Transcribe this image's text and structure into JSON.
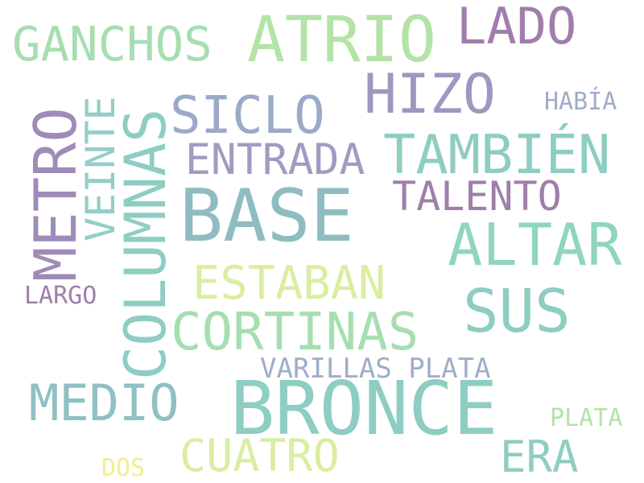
{
  "words": {
    "bronce": {
      "text": "BRONCE",
      "color": "#8ecdc2"
    },
    "base": {
      "text": "BASE",
      "color": "#8fbcc0"
    },
    "columnas": {
      "text": "COLUMNAS",
      "color": "#8ecdc2"
    },
    "atrio": {
      "text": "ATRIO",
      "color": "#b3e3a6"
    },
    "metro": {
      "text": "METRO",
      "color": "#a08bb8"
    },
    "cortinas": {
      "text": "CORTINAS",
      "color": "#a6deb0"
    },
    "sus": {
      "text": "SUS",
      "color": "#8ecdc2"
    },
    "altar": {
      "text": "ALTAR",
      "color": "#90d5bd"
    },
    "tambien": {
      "text": "TAMBIÉN",
      "color": "#8ecdc2"
    },
    "hizo": {
      "text": "HIZO",
      "color": "#9c98c0"
    },
    "lado": {
      "text": "LADO",
      "color": "#a07eab"
    },
    "ganchos": {
      "text": "GANCHOS",
      "color": "#a6deb0"
    },
    "siclo": {
      "text": "SICLO",
      "color": "#9aaac8"
    },
    "medio": {
      "text": "MEDIO",
      "color": "#8ec0c4"
    },
    "cuatro": {
      "text": "CUATRO",
      "color": "#d9eea1"
    },
    "era": {
      "text": "ERA",
      "color": "#8ecdc2"
    },
    "estaban": {
      "text": "ESTABAN",
      "color": "#d9eea1"
    },
    "entrada": {
      "text": "ENTRADA",
      "color": "#a09cc0"
    },
    "talento": {
      "text": "TALENTO",
      "color": "#a07eab"
    },
    "veinte": {
      "text": "VEINTE",
      "color": "#94cdc9"
    },
    "varillas_plata": {
      "text": "VARILLAS PLATA",
      "color": "#9fadc8"
    },
    "habia": {
      "text": "HABÍA",
      "color": "#9fadc8"
    },
    "largo": {
      "text": "LARGO",
      "color": "#a07eab"
    },
    "plata": {
      "text": "PLATA",
      "color": "#b3e3a6"
    },
    "dos": {
      "text": "DOS",
      "color": "#f2ee8e"
    }
  }
}
